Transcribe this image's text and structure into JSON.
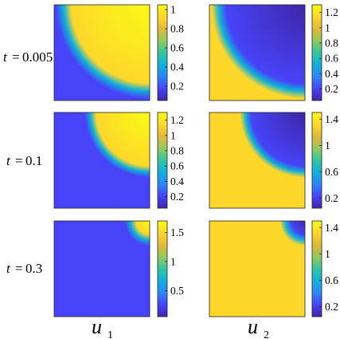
{
  "figure": {
    "time_prefix": "t",
    "column_labels": [
      {
        "base": "u",
        "sub": "1"
      },
      {
        "base": "u",
        "sub": "2"
      }
    ]
  },
  "colors": {
    "colormap": [
      "#3e26a8",
      "#4743f8",
      "#2e87f7",
      "#10b0d8",
      "#34c5a1",
      "#94c95c",
      "#e2b93a",
      "#fdd82b",
      "#f9fb15"
    ],
    "low": "#3e26a8",
    "high": "#f9fb15"
  },
  "chart_data": [
    {
      "type": "heatmap",
      "field": "u1",
      "t": "0.005",
      "description": "high inside a disk centered at the top-right corner, low outside",
      "region": {
        "center": "top-right",
        "radius": 0.9,
        "inside": "high",
        "width": 0.08
      },
      "colorbar": {
        "ticks": [
          0.2,
          0.4,
          0.6,
          0.8,
          1
        ],
        "tick_labels": [
          "0.2",
          "0.4",
          "0.6",
          "0.8",
          "1"
        ],
        "range": [
          0.05,
          1.05
        ]
      },
      "values": {
        "inside": 1.0,
        "outside": 0.12
      }
    },
    {
      "type": "heatmap",
      "field": "u2",
      "t": "0.005",
      "description": "low inside a disk centered at the top-right corner, high outside",
      "region": {
        "center": "top-right",
        "radius": 0.9,
        "inside": "low",
        "width": 0.08
      },
      "colorbar": {
        "ticks": [
          0.2,
          0.4,
          0.6,
          0.8,
          1,
          1.2
        ],
        "tick_labels": [
          "0.2",
          "0.4",
          "0.6",
          "0.8",
          "1",
          "1.2"
        ],
        "range": [
          0.05,
          1.3
        ]
      },
      "values": {
        "inside": 0.1,
        "outside": 1.2
      }
    },
    {
      "type": "heatmap",
      "field": "u1",
      "t": "0.1",
      "region": {
        "center": "top-right",
        "radius": 0.62,
        "inside": "high",
        "width": 0.06
      },
      "colorbar": {
        "ticks": [
          0.2,
          0.4,
          0.6,
          0.8,
          1,
          1.2
        ],
        "tick_labels": [
          "0.2",
          "0.4",
          "0.6",
          "0.8",
          "1",
          "1.2"
        ],
        "range": [
          0.05,
          1.3
        ]
      },
      "values": {
        "inside": 1.25,
        "outside": 0.1
      }
    },
    {
      "type": "heatmap",
      "field": "u2",
      "t": "0.1",
      "region": {
        "center": "top-right",
        "radius": 0.62,
        "inside": "low",
        "width": 0.06
      },
      "colorbar": {
        "ticks": [
          0.2,
          0.6,
          1,
          1.4
        ],
        "tick_labels": [
          "0.2",
          "0.6",
          "1",
          "1.4"
        ],
        "range": [
          0.05,
          1.5
        ]
      },
      "values": {
        "inside": 0.1,
        "outside": 1.45
      }
    },
    {
      "type": "heatmap",
      "field": "u1",
      "t": "0.3",
      "region": {
        "center": "top-right",
        "radius": 0.2,
        "inside": "high",
        "width": 0.06
      },
      "colorbar": {
        "ticks": [
          0.5,
          1,
          1.5
        ],
        "tick_labels": [
          "0.5",
          "1",
          "1.5"
        ],
        "range": [
          0.05,
          1.7
        ]
      },
      "values": {
        "inside": 1.65,
        "outside": 0.1
      }
    },
    {
      "type": "heatmap",
      "field": "u2",
      "t": "0.3",
      "region": {
        "center": "top-right",
        "radius": 0.2,
        "inside": "low",
        "width": 0.06
      },
      "colorbar": {
        "ticks": [
          0.2,
          0.6,
          1,
          1.4
        ],
        "tick_labels": [
          "0.2",
          "0.6",
          "1",
          "1.4"
        ],
        "range": [
          0.05,
          1.5
        ]
      },
      "values": {
        "inside": 0.1,
        "outside": 1.45
      }
    }
  ]
}
